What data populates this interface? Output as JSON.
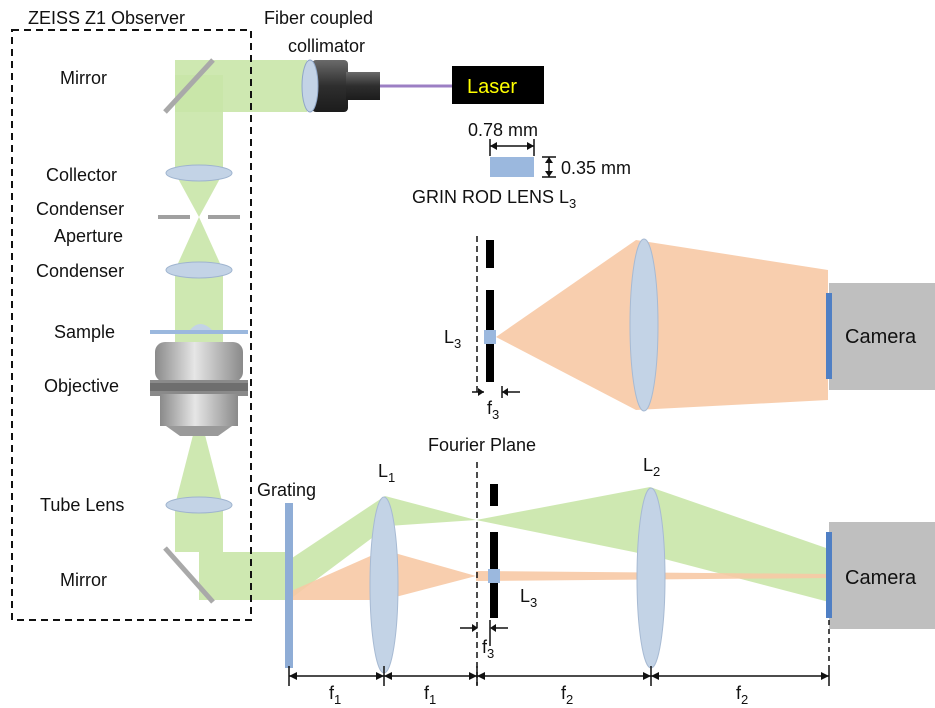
{
  "microscope": {
    "title": "ZEISS Z1 Observer",
    "mirror_top": "Mirror",
    "collector": "Collector",
    "condenser_aperture_line1": "Condenser",
    "condenser_aperture_line2": "Aperture",
    "condenser": "Condenser",
    "sample": "Sample",
    "objective": "Objective",
    "tube_lens": "Tube Lens",
    "mirror_bottom": "Mirror"
  },
  "source": {
    "collimator_line1": "Fiber coupled",
    "collimator_line2": "collimator",
    "laser": "Laser"
  },
  "grin": {
    "width": "0.78 mm",
    "height": "0.35 mm",
    "caption_main": "GRIN ROD LENS L",
    "caption_sub": "3"
  },
  "top_setup": {
    "l3_main": "L",
    "l3_sub": "3",
    "f3_main": "f",
    "f3_sub": "3",
    "camera": "Camera"
  },
  "bottom_setup": {
    "fourier_plane": "Fourier Plane",
    "grating": "Grating",
    "l1_main": "L",
    "l1_sub": "1",
    "l2_main": "L",
    "l2_sub": "2",
    "l3_main": "L",
    "l3_sub": "3",
    "f3_main": "f",
    "f3_sub": "3",
    "camera": "Camera"
  },
  "focal_lengths": [
    {
      "main": "f",
      "sub": "1"
    },
    {
      "main": "f",
      "sub": "1"
    },
    {
      "main": "f",
      "sub": "2"
    },
    {
      "main": "f",
      "sub": "2"
    }
  ],
  "colors": {
    "green_beam": "#c9e6a8",
    "orange_beam": "#f7c9a5",
    "lens": "#c3d3e6",
    "grating": "#8fadd6",
    "camera": "#bfbfbf",
    "sensor": "#4f7fc4",
    "laser": "#000000",
    "laser_text": "#ffff00"
  }
}
